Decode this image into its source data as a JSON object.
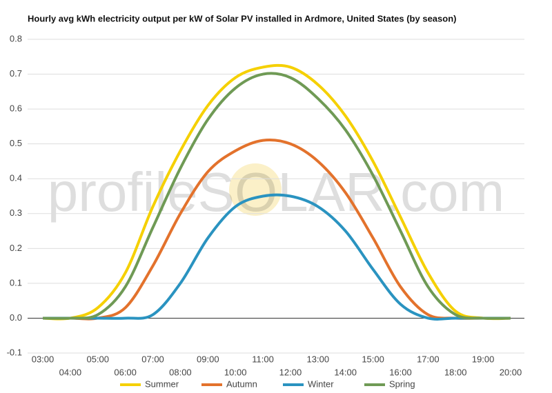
{
  "chart_data": {
    "type": "line",
    "title": "Hourly avg kWh electricity output per kW of Solar PV installed in Ardmore, United States (by season)",
    "watermark": "profileSOLAR.com",
    "categories": [
      "03:00",
      "04:00",
      "05:00",
      "06:00",
      "07:00",
      "08:00",
      "09:00",
      "10:00",
      "11:00",
      "12:00",
      "13:00",
      "14:00",
      "15:00",
      "16:00",
      "17:00",
      "18:00",
      "19:00",
      "20:00"
    ],
    "series": [
      {
        "name": "Summer",
        "color": "#f5d000",
        "values": [
          0,
          0,
          0.03,
          0.13,
          0.32,
          0.48,
          0.61,
          0.69,
          0.72,
          0.72,
          0.67,
          0.58,
          0.45,
          0.29,
          0.13,
          0.02,
          0,
          0
        ]
      },
      {
        "name": "Autumn",
        "color": "#e3722c",
        "values": [
          0,
          0,
          0,
          0.03,
          0.15,
          0.3,
          0.42,
          0.48,
          0.51,
          0.5,
          0.45,
          0.36,
          0.23,
          0.09,
          0.01,
          0,
          0,
          0
        ]
      },
      {
        "name": "Winter",
        "color": "#2a93c0",
        "values": [
          0,
          0,
          0,
          0,
          0.01,
          0.1,
          0.23,
          0.32,
          0.35,
          0.35,
          0.32,
          0.25,
          0.14,
          0.04,
          0,
          0,
          0,
          0
        ]
      },
      {
        "name": "Spring",
        "color": "#6f9a55",
        "values": [
          0,
          0,
          0.01,
          0.09,
          0.26,
          0.43,
          0.57,
          0.66,
          0.7,
          0.69,
          0.63,
          0.54,
          0.41,
          0.25,
          0.09,
          0.01,
          0,
          0
        ]
      }
    ],
    "ylim": [
      -0.1,
      0.8
    ],
    "yticks": [
      -0.1,
      {
        "value": 0,
        "label": "0.0"
      },
      0.1,
      0.2,
      0.3,
      0.4,
      0.5,
      0.6,
      0.7,
      0.8
    ],
    "grid": true,
    "legend": "bottom"
  }
}
